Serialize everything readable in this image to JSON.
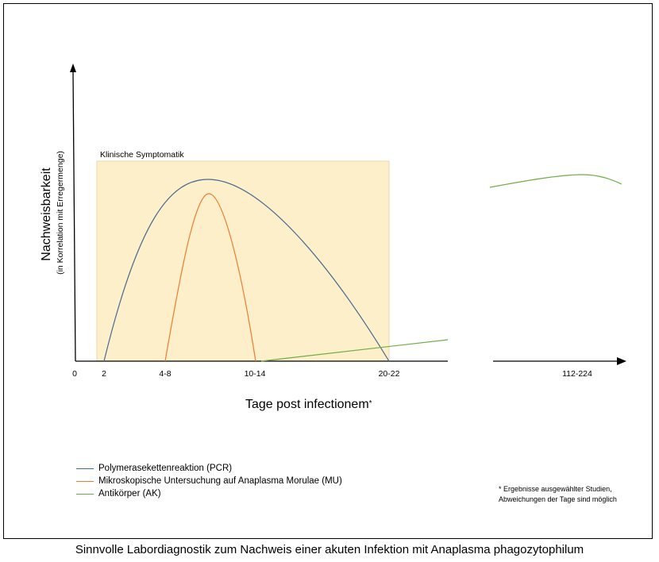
{
  "caption": "Sinnvolle Labordiagnostik zum Nachweis einer akuten Infektion mit Anaplasma phagozytophilum",
  "footnote": {
    "line1": "* Ergebnisse ausgewählter Studien,",
    "line2": "Abweichungen der Tage sind möglich"
  },
  "chart_data": {
    "type": "line",
    "title": "",
    "ylabel": "Nachweisbarkeit",
    "ylabel_sub": "(in Korrelation mit Erregermenge)",
    "xlabel": "Tage post infectionem",
    "xlabel_marker": "*",
    "shaded_region": {
      "label": "Klinische Symptomatik",
      "color": "#fdefc9"
    },
    "x_ticks": [
      "0",
      "2",
      "4-8",
      "10-14",
      "20-22",
      "112-224"
    ],
    "axis_break": "between 20-22 and 112-224",
    "series": [
      {
        "name": "Polymerasekettenreaktion (PCR)",
        "color": "#4a6a8f",
        "description_points": [
          [
            "2",
            0
          ],
          [
            "peak",
            1.0
          ],
          [
            "20-22",
            0
          ]
        ]
      },
      {
        "name": "Mikroskopische Untersuchung auf Anaplasma Morulae (MU)",
        "color": "#ed7d31",
        "description_points": [
          [
            "4-8",
            0
          ],
          [
            "peak",
            0.92
          ],
          [
            "10-14",
            0
          ]
        ]
      },
      {
        "name": "Antikörper (AK)",
        "color": "#70ad47",
        "description_points": [
          [
            "10-14",
            0
          ],
          [
            "20-22",
            0.08
          ],
          [
            "112-224",
            1.0
          ]
        ]
      }
    ],
    "grid": false,
    "legend_position": "bottom-left"
  }
}
